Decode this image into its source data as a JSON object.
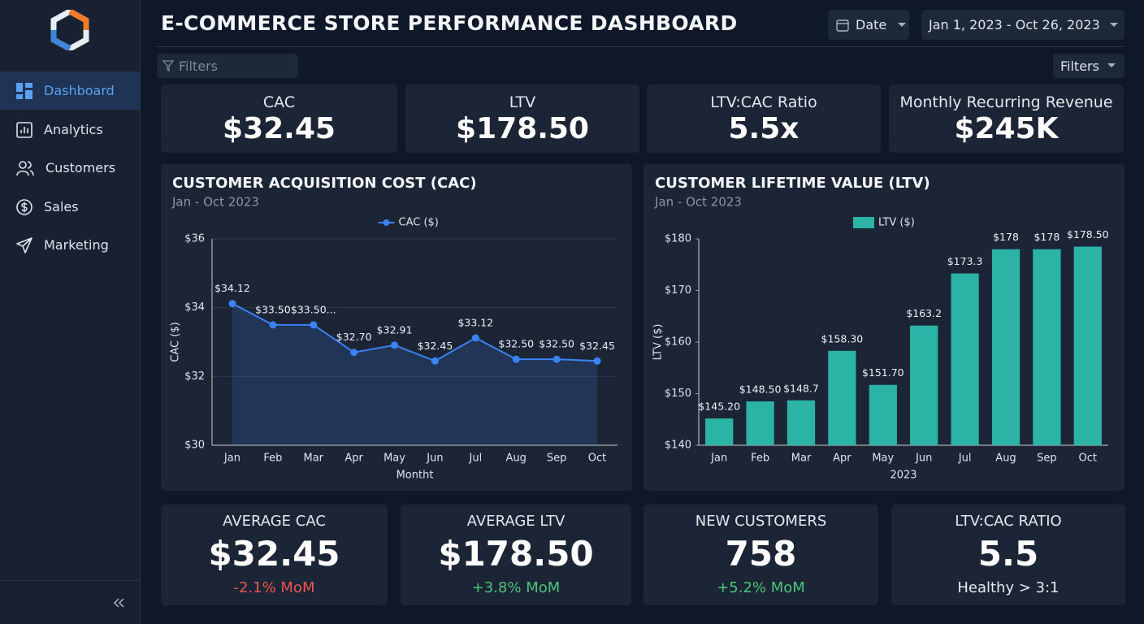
{
  "header": {
    "title": "E-COMMERCE STORE PERFORMANCE DASHBOARD",
    "date_button": "Date",
    "date_range": "Jan 1, 2023 - Oct 26, 2023",
    "filter_placeholder": "Filters",
    "filters_button": "Filters"
  },
  "sidebar": {
    "items": [
      "Dashboard",
      "Analytics",
      "Customers",
      "Sales",
      "Marketing"
    ]
  },
  "kpis": [
    {
      "label": "CAC",
      "value": "$32.45"
    },
    {
      "label": "LTV",
      "value": "$178.50"
    },
    {
      "label": "LTV:CAC Ratio",
      "value": "5.5x"
    },
    {
      "label": "Monthly Recurring Revenue",
      "value": "$245K"
    }
  ],
  "summary": [
    {
      "label": "AVERAGE CAC",
      "value": "$32.45",
      "change": "-2.1% MoM"
    },
    {
      "label": "AVERAGE LTV",
      "value": "$178.50",
      "change": "+3.8% MoM"
    },
    {
      "label": "NEW CUSTOMERS",
      "value": "758",
      "change": "+5.2% MoM"
    },
    {
      "label": "LTV:CAC RATIO",
      "value": "5.5",
      "change": "Healthy > 3:1"
    }
  ],
  "chart_data": [
    {
      "type": "line",
      "title": "CUSTOMER ACQUISITION COST (CAC)",
      "subtitle": "Jan - Oct 2023",
      "x_label": "Montht",
      "y_label": "CAC ($)",
      "categories": [
        "Jan",
        "Feb",
        "Mar",
        "Apr",
        "May",
        "Jun",
        "Jul",
        "Aug",
        "Sep",
        "Oct"
      ],
      "series": [
        {
          "name": "CAC ($)",
          "color": "#3b82f6",
          "values": [
            34.12,
            33.5,
            33.5,
            32.7,
            32.91,
            32.45,
            33.12,
            32.5,
            32.5,
            32.45
          ],
          "value_labels": [
            "$34.12",
            "$33.50",
            "$33.50...",
            "$32.70",
            "$32.91",
            "$32.45",
            "$33.12",
            "$32.50",
            "$32.50",
            "$32.45"
          ]
        }
      ],
      "ylim": [
        30,
        36
      ],
      "yticks": [
        {
          "value": 30,
          "label": "$30"
        },
        {
          "value": 32,
          "label": "$32"
        },
        {
          "value": 34,
          "label": "$34"
        },
        {
          "value": 36,
          "label": "$36"
        }
      ],
      "grid": true,
      "area": true,
      "legend": "top"
    },
    {
      "type": "bar",
      "title": "CUSTOMER LIFETIME VALUE (LTV)",
      "subtitle": "Jan - Oct 2023",
      "x_label": "2023",
      "y_label": "LTV ($)",
      "categories": [
        "Jan",
        "Feb",
        "Mar",
        "Apr",
        "May",
        "Jun",
        "Jul",
        "Aug",
        "Sep",
        "Oct"
      ],
      "series": [
        {
          "name": "LTV ($)",
          "color": "#2bb3a6",
          "values": [
            145.2,
            148.5,
            148.7,
            158.3,
            151.7,
            163.2,
            173.3,
            178,
            178,
            178.5
          ],
          "value_labels": [
            "$145.20",
            "$148.50",
            "$148.7",
            "$158.30",
            "$151.70",
            "$163.2",
            "$173.3",
            "$178",
            "$178",
            "$178.50"
          ]
        }
      ],
      "ylim": [
        140,
        180
      ],
      "yticks": [
        {
          "value": 140,
          "label": "$140"
        },
        {
          "value": 150,
          "label": "$150"
        },
        {
          "value": 160,
          "label": "$160"
        },
        {
          "value": 170,
          "label": "$170"
        },
        {
          "value": 180,
          "label": "$180"
        }
      ],
      "grid": false,
      "legend": "top"
    }
  ]
}
